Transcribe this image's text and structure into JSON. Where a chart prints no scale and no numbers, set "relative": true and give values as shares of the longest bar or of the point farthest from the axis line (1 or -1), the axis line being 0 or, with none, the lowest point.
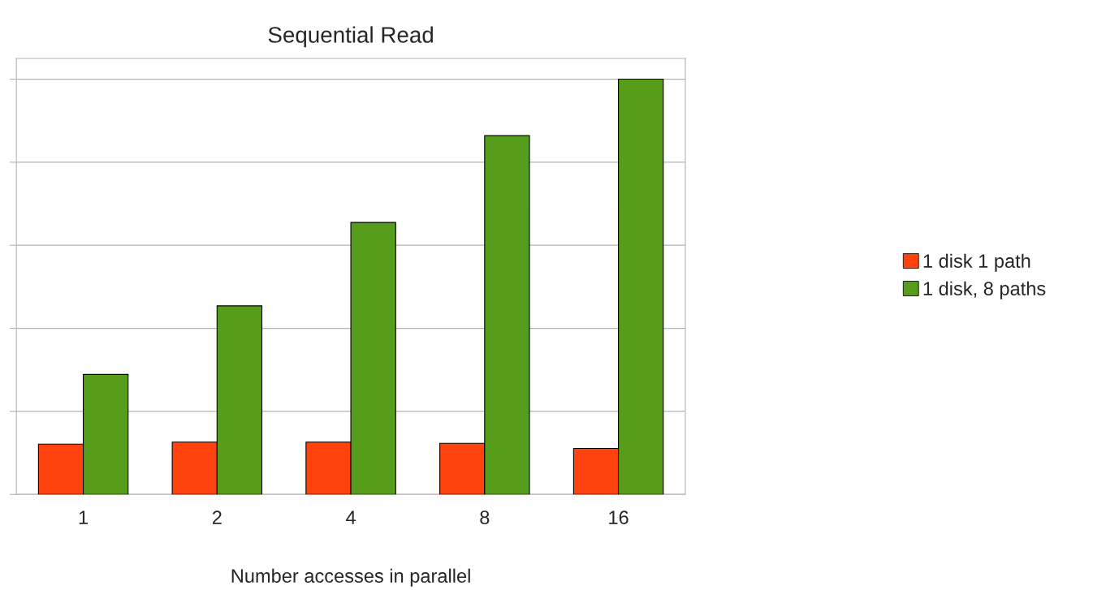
{
  "chart_data": {
    "type": "bar",
    "title": "Sequential Read",
    "xlabel": "Number accesses in parallel",
    "categories": [
      "1",
      "2",
      "4",
      "8",
      "16"
    ],
    "series": [
      {
        "name": "1 disk 1 path",
        "color": "#ff420e",
        "values": [
          0.121,
          0.126,
          0.126,
          0.123,
          0.111
        ]
      },
      {
        "name": "1 disk, 8 paths",
        "color": "#579d1c",
        "values": [
          0.289,
          0.454,
          0.655,
          0.864,
          1
        ]
      }
    ],
    "relative": true,
    "grid": "y",
    "legend": "right"
  }
}
